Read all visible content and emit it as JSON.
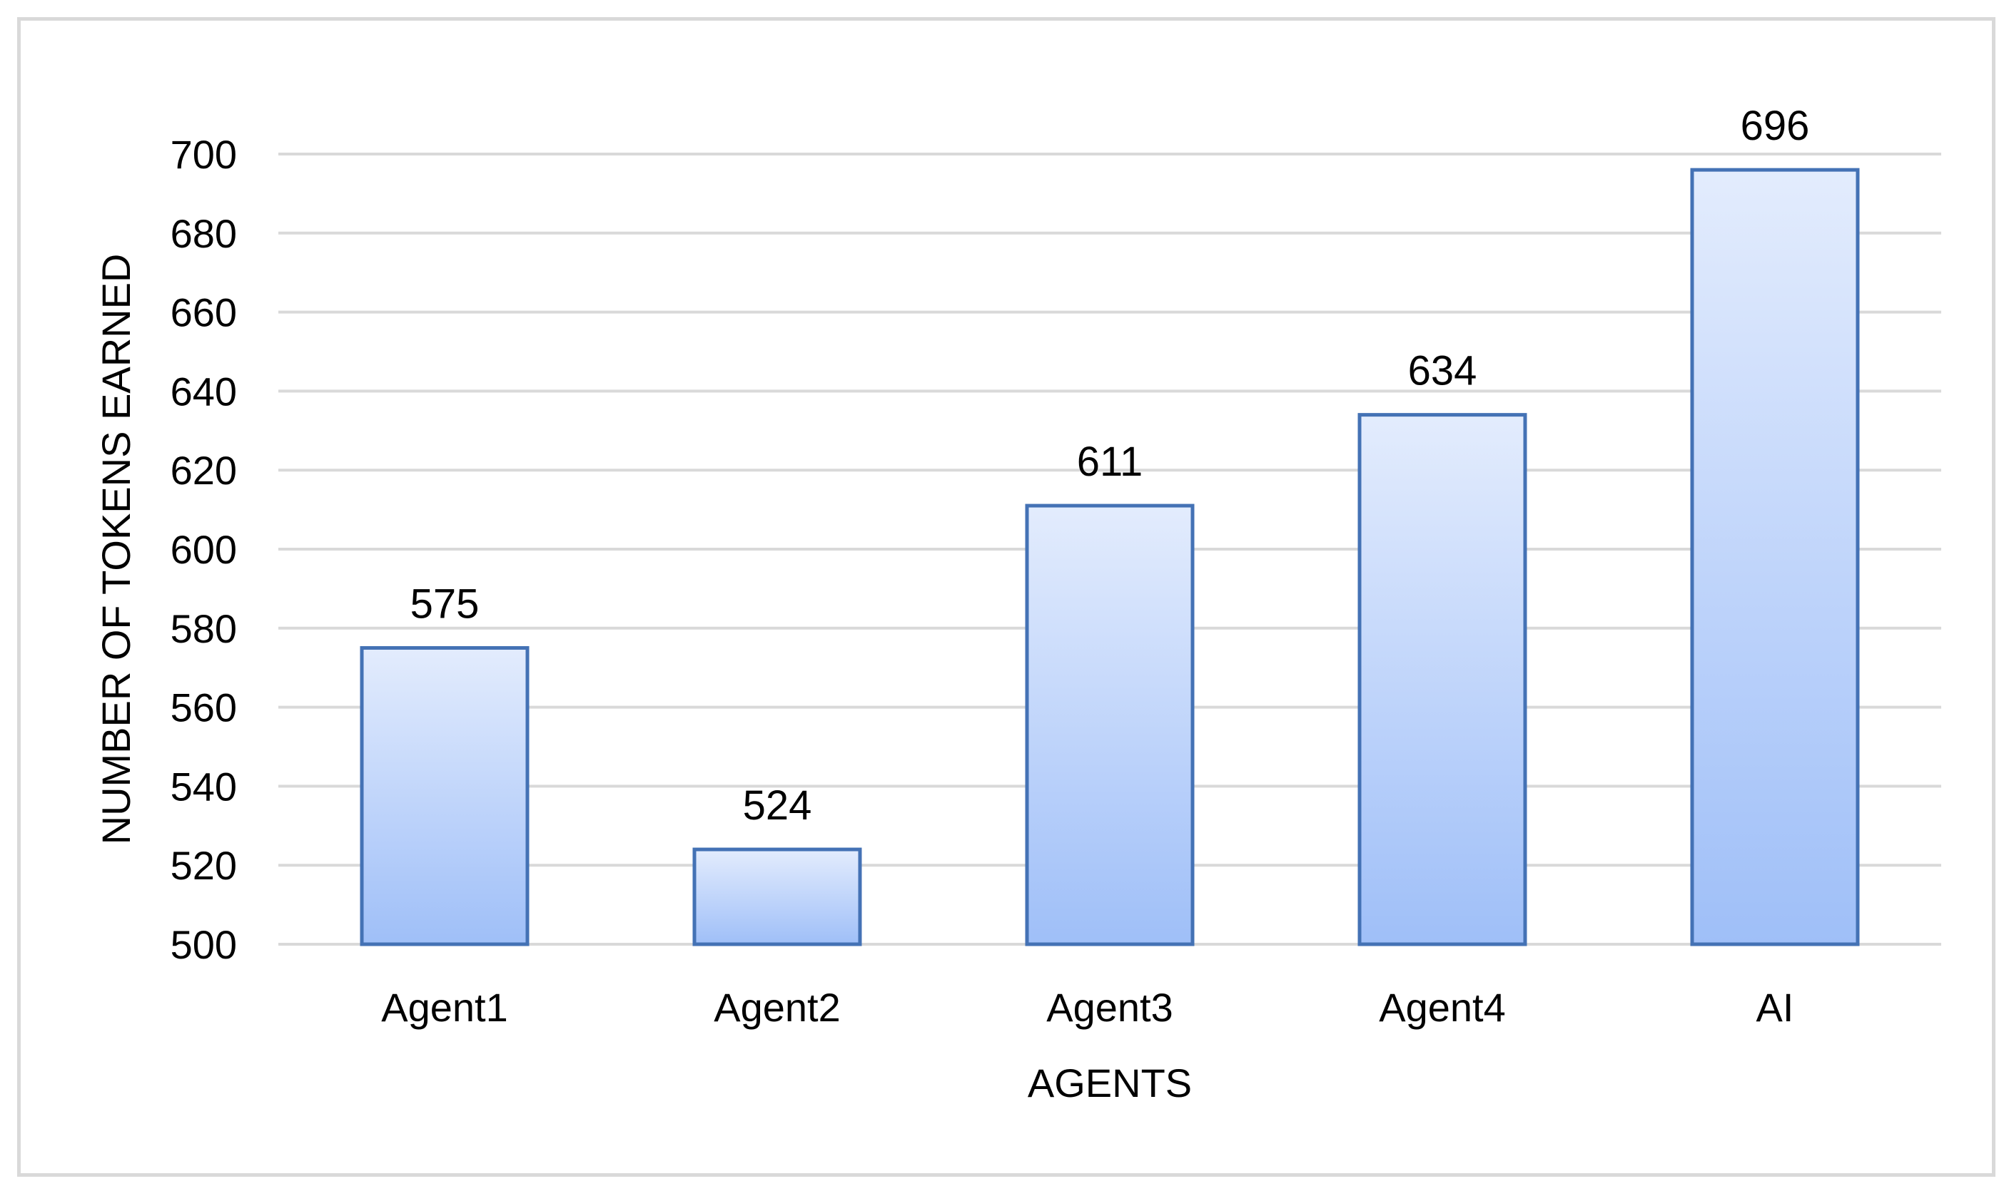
{
  "colors": {
    "bar_top": "#e3ecfd",
    "bar_bottom": "#9fbff8",
    "bar_outline": "#4472b5",
    "gridline": "#d9d9d9",
    "frame": "#d9d9d9"
  },
  "chart_data": {
    "type": "bar",
    "title": "",
    "xlabel": "AGENTS",
    "ylabel": "NUMBER OF TOKENS EARNED",
    "categories": [
      "Agent1",
      "Agent2",
      "Agent3",
      "Agent4",
      "AI"
    ],
    "values": [
      575,
      524,
      611,
      634,
      696
    ],
    "data_labels": [
      "575",
      "524",
      "611",
      "634",
      "696"
    ],
    "ylim": [
      500,
      700
    ],
    "yticks": [
      500,
      520,
      540,
      560,
      580,
      600,
      620,
      640,
      660,
      680,
      700
    ],
    "ytick_labels": [
      "500",
      "520",
      "540",
      "560",
      "580",
      "600",
      "620",
      "640",
      "660",
      "680",
      "700"
    ],
    "grid": true,
    "legend": "none"
  }
}
